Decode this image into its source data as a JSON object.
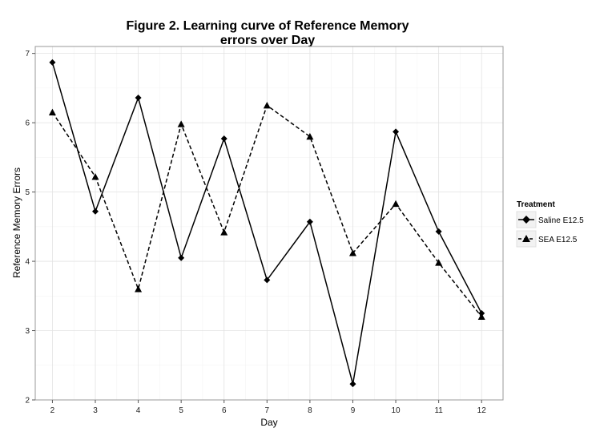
{
  "chart_data": {
    "type": "line",
    "title_lines": [
      "Figure 2. Learning curve of Reference Memory",
      "errors over Day"
    ],
    "xlabel": "Day",
    "ylabel": "Reference Memory Errors",
    "x": [
      2,
      3,
      4,
      5,
      6,
      7,
      8,
      9,
      10,
      11,
      12
    ],
    "xlim": [
      1.6,
      12.5
    ],
    "ylim": [
      2,
      7.1
    ],
    "x_ticks": [
      2,
      3,
      4,
      5,
      6,
      7,
      8,
      9,
      10,
      11,
      12
    ],
    "y_ticks": [
      2,
      3,
      4,
      5,
      6,
      7
    ],
    "grid": true,
    "legend": {
      "title": "Treatment",
      "placement": "right"
    },
    "series": [
      {
        "name": "Saline E12.5",
        "marker": "diamond",
        "line_style": "solid",
        "color": "#000000",
        "values": [
          6.87,
          4.72,
          6.36,
          4.05,
          5.77,
          3.73,
          4.57,
          2.23,
          5.87,
          4.43,
          3.25
        ]
      },
      {
        "name": "SEA E12.5",
        "marker": "triangle",
        "line_style": "dashed",
        "color": "#000000",
        "values": [
          6.15,
          5.22,
          3.6,
          5.98,
          4.42,
          6.25,
          5.8,
          4.12,
          4.83,
          3.98,
          3.2
        ]
      }
    ]
  }
}
